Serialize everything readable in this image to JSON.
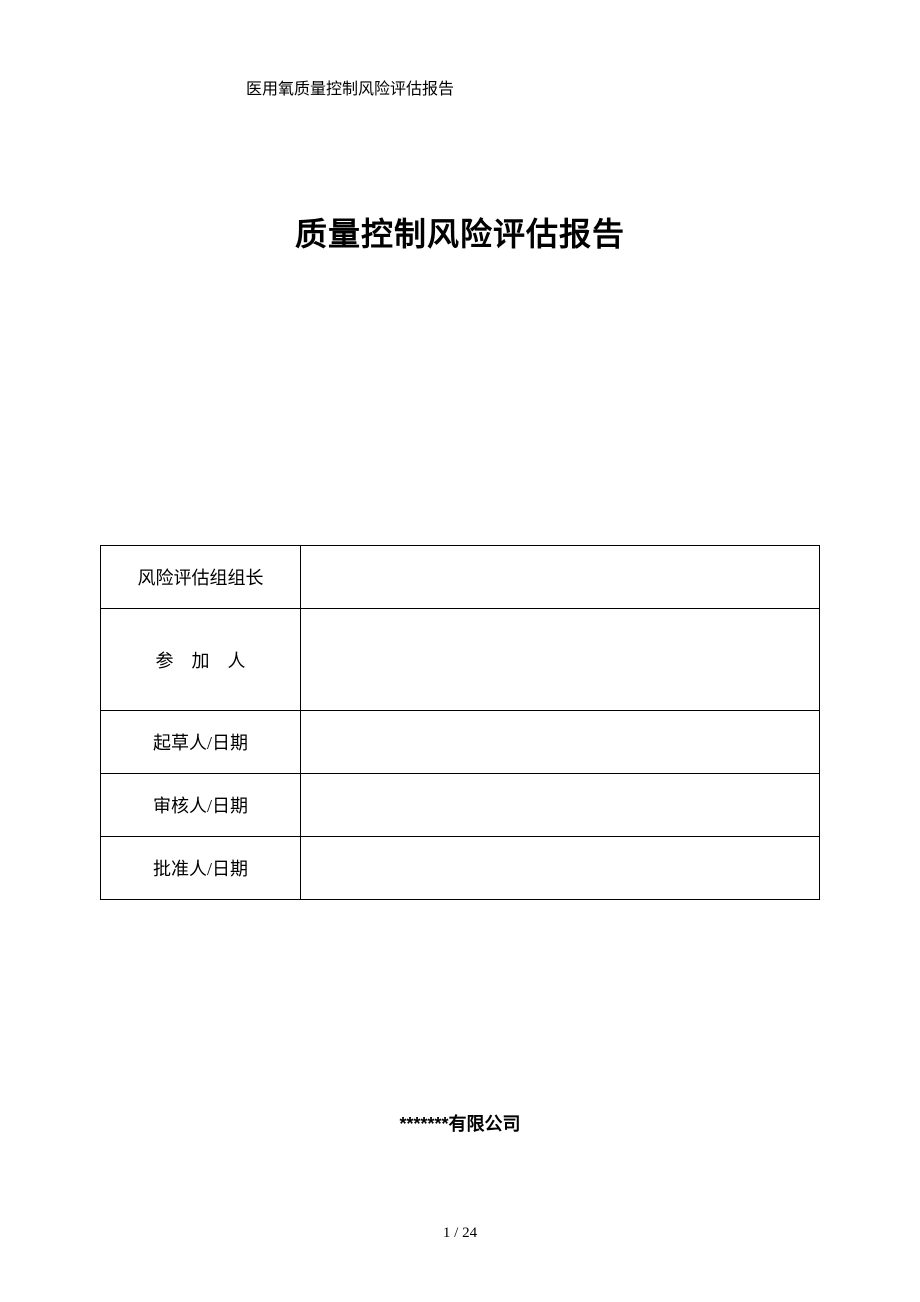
{
  "document": {
    "header_text": "医用氧质量控制风险评估报告",
    "main_title": "质量控制风险评估报告",
    "company_name": "*******有限公司",
    "page_number": "1 / 24"
  },
  "table": {
    "rows": [
      {
        "label": "风险评估组组长",
        "value": "",
        "label_class": ""
      },
      {
        "label": "参加人",
        "value": "",
        "label_class": "participant-text"
      },
      {
        "label": "起草人/日期",
        "value": "",
        "label_class": ""
      },
      {
        "label": "审核人/日期",
        "value": "",
        "label_class": ""
      },
      {
        "label": "批准人/日期",
        "value": "",
        "label_class": ""
      }
    ]
  },
  "styling": {
    "background_color": "#ffffff",
    "text_color": "#000000",
    "border_color": "#000000",
    "header_fontsize": 16,
    "title_fontsize": 32,
    "table_fontsize": 18,
    "company_fontsize": 18,
    "pagenum_fontsize": 15,
    "label_column_width": 200,
    "row_height_tall": 102,
    "row_height_normal": 62
  }
}
